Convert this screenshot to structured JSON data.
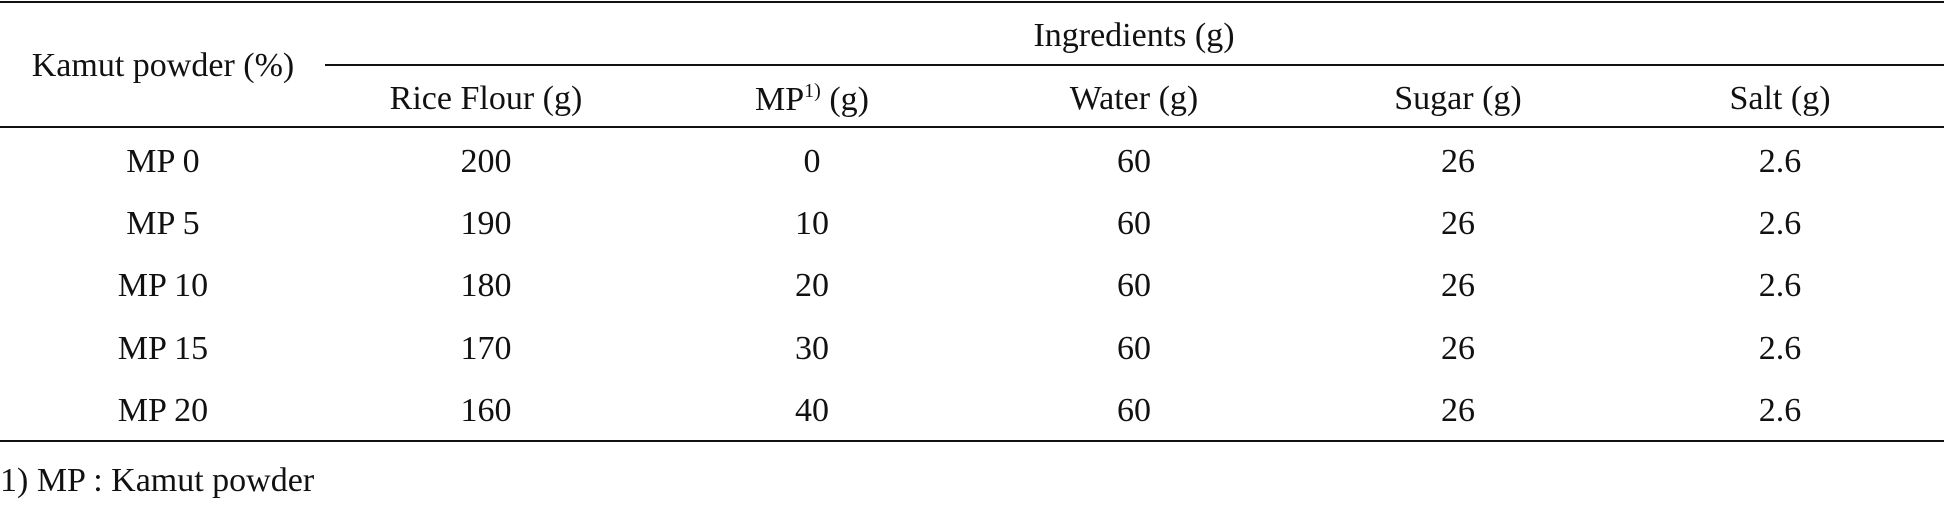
{
  "table": {
    "row_header_label": "Kamut powder (%)",
    "group_header": "Ingredients (g)",
    "columns": [
      {
        "label": "Rice Flour (g)"
      },
      {
        "label": "MP",
        "sup": "1)",
        "suffix": " (g)"
      },
      {
        "label": "Water (g)"
      },
      {
        "label": "Sugar (g)"
      },
      {
        "label": "Salt (g)"
      }
    ],
    "rows": [
      {
        "label": "MP 0",
        "cells": [
          "200",
          "0",
          "60",
          "26",
          "2.6"
        ]
      },
      {
        "label": "MP 5",
        "cells": [
          "190",
          "10",
          "60",
          "26",
          "2.6"
        ]
      },
      {
        "label": "MP 10",
        "cells": [
          "180",
          "20",
          "60",
          "26",
          "2.6"
        ]
      },
      {
        "label": "MP 15",
        "cells": [
          "170",
          "30",
          "60",
          "26",
          "2.6"
        ]
      },
      {
        "label": "MP 20",
        "cells": [
          "160",
          "40",
          "60",
          "26",
          "2.6"
        ]
      }
    ]
  },
  "footnote": "1) MP : Kamut powder"
}
